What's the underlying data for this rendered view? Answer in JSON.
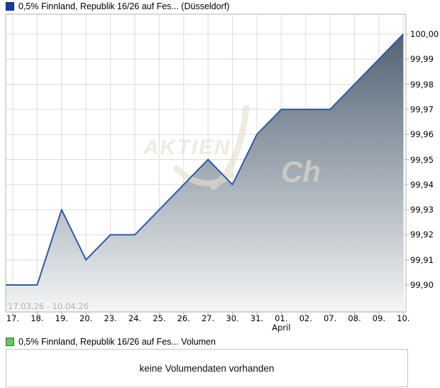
{
  "legend": {
    "price_label": "0,5% Finnland, Republik 16/26 auf Fes... (Düsseldorf)",
    "price_color": "#1d3d94",
    "price_border_color": "#0f2a6b",
    "volume_label": "0,5% Finnland, Republik 16/26 auf Fes... Volumen",
    "volume_color": "#66c463",
    "volume_border_color": "#2e7d32"
  },
  "chart_data": {
    "type": "area",
    "title": "0,5% Finnland, Republik 16/26 auf Fes... (Düsseldorf)",
    "date_range": "17.03.26 - 10.04.26",
    "categories": [
      "17.",
      "18.",
      "19.",
      "20.",
      "23.",
      "24.",
      "25.",
      "26.",
      "27.",
      "30.",
      "31.",
      "01.",
      "02.",
      "07.",
      "08.",
      "09.",
      "10."
    ],
    "values": [
      99.9,
      99.9,
      99.93,
      99.91,
      99.92,
      99.92,
      99.93,
      99.94,
      99.95,
      99.94,
      99.96,
      99.97,
      99.97,
      99.97,
      99.98,
      99.99,
      100.0
    ],
    "month_label": "April",
    "month_tick_index": 11,
    "y_ticks": [
      "100,00",
      "99,99",
      "99,98",
      "99,97",
      "99,96",
      "99,95",
      "99,94",
      "99,93",
      "99,92",
      "99,91",
      "99,90"
    ],
    "ylim": [
      99.889,
      100.008
    ],
    "grid": true,
    "legend_position": "top-left",
    "line_color": "#2e5ba1",
    "fill_top_color": "#45586a",
    "fill_bottom_color": "#f4f5f6",
    "grid_color": "#dcdcdc",
    "axis_border_color": "#b0b0b0",
    "axis_label_color": "#000000",
    "date_range_color": "#aab3bf",
    "watermark": {
      "part1": "AKTIEN",
      "part2": "Ch",
      "color": "#e6decd"
    }
  },
  "volume_panel": {
    "message": "keine Volumendaten vorhanden"
  }
}
